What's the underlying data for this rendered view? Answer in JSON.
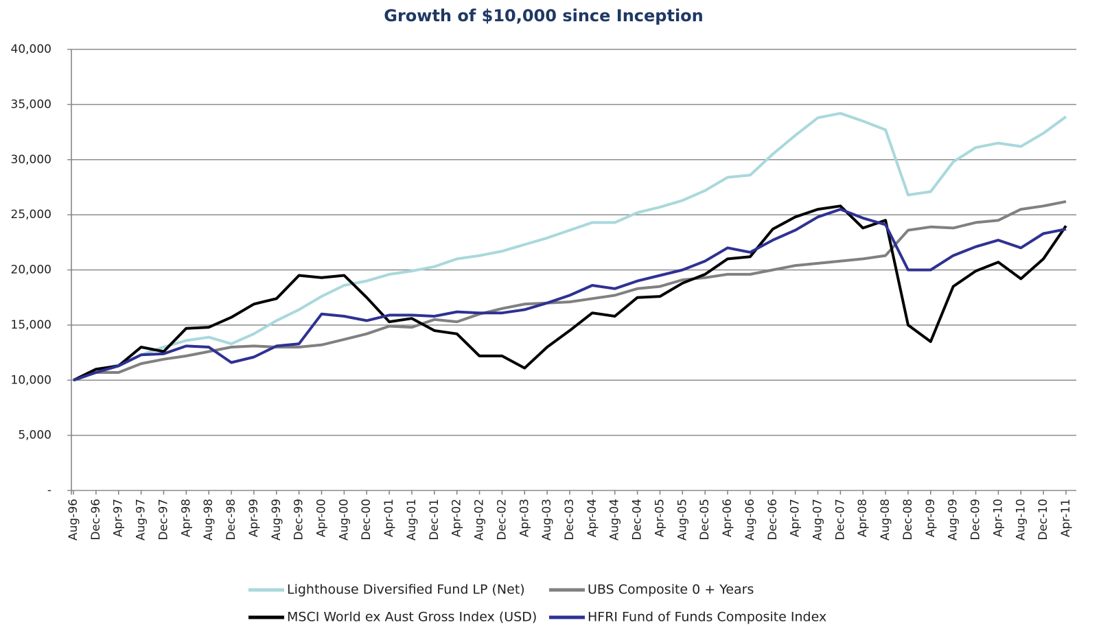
{
  "chart_data": {
    "type": "line",
    "title": "Growth of $10,000 since Inception",
    "categories": [
      "Aug-96",
      "Dec-96",
      "Apr-97",
      "Aug-97",
      "Dec-97",
      "Apr-98",
      "Aug-98",
      "Dec-98",
      "Apr-99",
      "Aug-99",
      "Dec-99",
      "Apr-00",
      "Aug-00",
      "Dec-00",
      "Apr-01",
      "Aug-01",
      "Dec-01",
      "Apr-02",
      "Aug-02",
      "Dec-02",
      "Apr-03",
      "Aug-03",
      "Dec-03",
      "Apr-04",
      "Aug-04",
      "Dec-04",
      "Apr-05",
      "Aug-05",
      "Dec-05",
      "Apr-06",
      "Aug-06",
      "Dec-06",
      "Apr-07",
      "Aug-07",
      "Dec-07",
      "Apr-08",
      "Aug-08",
      "Dec-08",
      "Apr-09",
      "Aug-09",
      "Dec-09",
      "Apr-10",
      "Aug-10",
      "Dec-10",
      "Apr-11"
    ],
    "series": [
      {
        "name": "Lighthouse Diversified Fund LP (Net)",
        "color": "#a9d8dc",
        "values": [
          10000,
          10800,
          11400,
          12300,
          13000,
          13600,
          13900,
          13300,
          14200,
          15400,
          16400,
          17600,
          18600,
          19000,
          19600,
          19900,
          20300,
          21000,
          21300,
          21700,
          22300,
          22900,
          23600,
          24300,
          24300,
          25200,
          25700,
          26300,
          27200,
          28400,
          28600,
          30500,
          32200,
          33800,
          34200,
          33500,
          32700,
          26800,
          27100,
          29800,
          31100,
          31500,
          31200,
          32400,
          33900
        ]
      },
      {
        "name": "UBS Composite 0 + Years",
        "color": "#808080",
        "values": [
          10000,
          10700,
          10700,
          11500,
          11900,
          12200,
          12600,
          13000,
          13100,
          13000,
          13000,
          13200,
          13700,
          14200,
          14900,
          14800,
          15500,
          15300,
          16000,
          16500,
          16900,
          17000,
          17100,
          17400,
          17700,
          18300,
          18500,
          19100,
          19300,
          19600,
          19600,
          20000,
          20400,
          20600,
          20800,
          21000,
          21300,
          23600,
          23900,
          23800,
          24300,
          24500,
          25500,
          25800,
          26200
        ]
      },
      {
        "name": "MSCI World ex Aust Gross Index (USD)",
        "color": "#000000",
        "values": [
          10000,
          11000,
          11300,
          13000,
          12600,
          14700,
          14800,
          15700,
          16900,
          17400,
          19500,
          19300,
          19500,
          17500,
          15300,
          15600,
          14500,
          14200,
          12200,
          12200,
          11100,
          13000,
          14500,
          16100,
          15800,
          17500,
          17600,
          18800,
          19600,
          21000,
          21200,
          23700,
          24800,
          25500,
          25800,
          23800,
          24500,
          15000,
          13500,
          18500,
          19900,
          20700,
          19200,
          21000,
          24000
        ]
      },
      {
        "name": "HFRI Fund of Funds Composite Index",
        "color": "#2e3192",
        "values": [
          10000,
          10700,
          11300,
          12300,
          12400,
          13100,
          13000,
          11600,
          12100,
          13100,
          13300,
          16000,
          15800,
          15400,
          15900,
          15900,
          15800,
          16200,
          16100,
          16100,
          16400,
          17000,
          17700,
          18600,
          18300,
          19000,
          19500,
          20000,
          20800,
          22000,
          21600,
          22700,
          23600,
          24800,
          25500,
          24700,
          24100,
          20000,
          20000,
          21300,
          22100,
          22700,
          22000,
          23300,
          23700
        ]
      }
    ],
    "ylim": [
      0,
      40000
    ],
    "yticks": [
      {
        "value": 0,
        "label": "-"
      },
      {
        "value": 5000,
        "label": "5,000"
      },
      {
        "value": 10000,
        "label": "10,000"
      },
      {
        "value": 15000,
        "label": "15,000"
      },
      {
        "value": 20000,
        "label": "20,000"
      },
      {
        "value": 25000,
        "label": "25,000"
      },
      {
        "value": 30000,
        "label": "30,000"
      },
      {
        "value": 35000,
        "label": "35,000"
      },
      {
        "value": 40000,
        "label": "40,000"
      }
    ],
    "grid": true
  }
}
